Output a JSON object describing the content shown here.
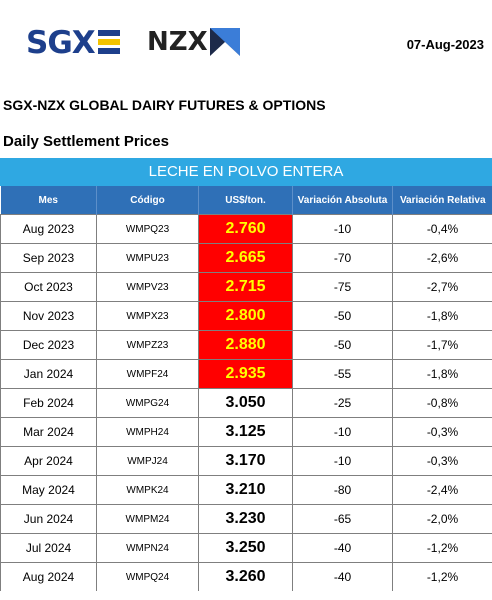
{
  "header": {
    "sgx_logo": "SGX",
    "nzx_logo": "NZX",
    "date": "07-Aug-2023"
  },
  "title": "SGX-NZX GLOBAL DAIRY FUTURES & OPTIONS",
  "subtitle": "Daily Settlement Prices",
  "product": "LECHE EN POLVO ENTERA",
  "columns": [
    "Mes",
    "Código",
    "US$/ton.",
    "Variación Absoluta",
    "Variación Relativa"
  ],
  "rows": [
    {
      "mes": "Aug 2023",
      "codigo": "WMPQ23",
      "precio": "2.760",
      "var_abs": "-10",
      "var_rel": "-0,4%",
      "highlight": true
    },
    {
      "mes": "Sep 2023",
      "codigo": "WMPU23",
      "precio": "2.665",
      "var_abs": "-70",
      "var_rel": "-2,6%",
      "highlight": true
    },
    {
      "mes": "Oct 2023",
      "codigo": "WMPV23",
      "precio": "2.715",
      "var_abs": "-75",
      "var_rel": "-2,7%",
      "highlight": true
    },
    {
      "mes": "Nov 2023",
      "codigo": "WMPX23",
      "precio": "2.800",
      "var_abs": "-50",
      "var_rel": "-1,8%",
      "highlight": true
    },
    {
      "mes": "Dec 2023",
      "codigo": "WMPZ23",
      "precio": "2.880",
      "var_abs": "-50",
      "var_rel": "-1,7%",
      "highlight": true
    },
    {
      "mes": "Jan 2024",
      "codigo": "WMPF24",
      "precio": "2.935",
      "var_abs": "-55",
      "var_rel": "-1,8%",
      "highlight": true
    },
    {
      "mes": "Feb 2024",
      "codigo": "WMPG24",
      "precio": "3.050",
      "var_abs": "-25",
      "var_rel": "-0,8%",
      "highlight": false
    },
    {
      "mes": "Mar 2024",
      "codigo": "WMPH24",
      "precio": "3.125",
      "var_abs": "-10",
      "var_rel": "-0,3%",
      "highlight": false
    },
    {
      "mes": "Apr 2024",
      "codigo": "WMPJ24",
      "precio": "3.170",
      "var_abs": "-10",
      "var_rel": "-0,3%",
      "highlight": false
    },
    {
      "mes": "May 2024",
      "codigo": "WMPK24",
      "precio": "3.210",
      "var_abs": "-80",
      "var_rel": "-2,4%",
      "highlight": false
    },
    {
      "mes": "Jun 2024",
      "codigo": "WMPM24",
      "precio": "3.230",
      "var_abs": "-65",
      "var_rel": "-2,0%",
      "highlight": false
    },
    {
      "mes": "Jul 2024",
      "codigo": "WMPN24",
      "precio": "3.250",
      "var_abs": "-40",
      "var_rel": "-1,2%",
      "highlight": false
    },
    {
      "mes": "Aug 2024",
      "codigo": "WMPQ24",
      "precio": "3.260",
      "var_abs": "-40",
      "var_rel": "-1,2%",
      "highlight": false
    }
  ],
  "colors": {
    "sgx_blue": "#1d3f8c",
    "sgx_yellow": "#f3c300",
    "band_blue": "#2fa8e2",
    "header_blue": "#2f70b7",
    "highlight_red": "#ff0000",
    "highlight_text": "#ffff00"
  }
}
